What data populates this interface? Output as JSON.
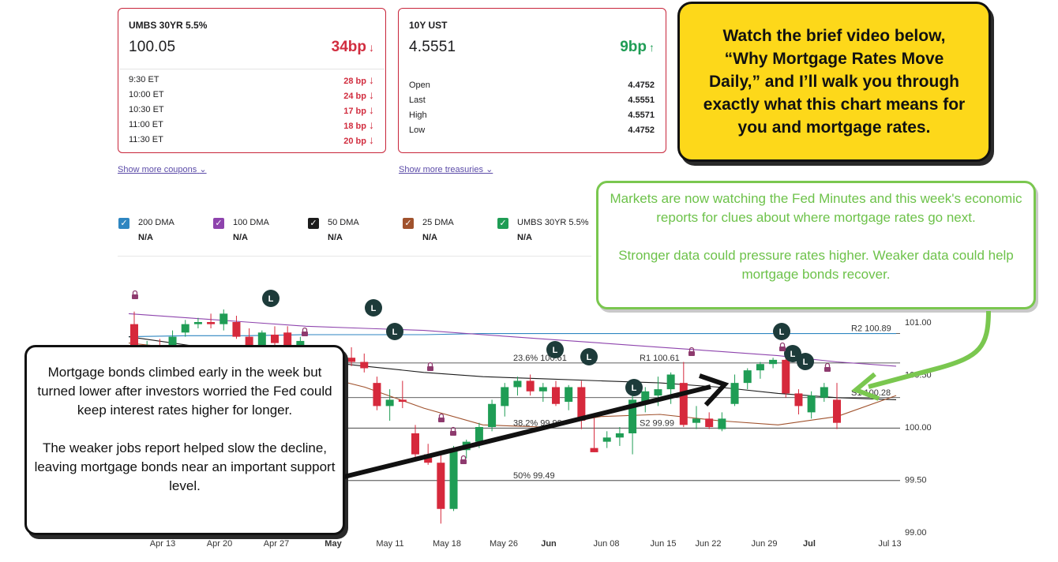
{
  "umbs_card": {
    "title": "UMBS 30YR 5.5%",
    "price": "100.05",
    "change": "34bp",
    "direction": "down",
    "times": [
      {
        "time": "9:30 ET",
        "change": "28 bp"
      },
      {
        "time": "10:00 ET",
        "change": "24 bp"
      },
      {
        "time": "10:30 ET",
        "change": "17 bp"
      },
      {
        "time": "11:00 ET",
        "change": "18 bp"
      },
      {
        "time": "11:30 ET",
        "change": "20 bp"
      }
    ],
    "more_link": "Show more coupons"
  },
  "ust_card": {
    "title": "10Y UST",
    "price": "4.5551",
    "change": "9bp",
    "direction": "up",
    "stats": [
      {
        "label": "Open",
        "value": "4.4752"
      },
      {
        "label": "Last",
        "value": "4.5551"
      },
      {
        "label": "High",
        "value": "4.5571"
      },
      {
        "label": "Low",
        "value": "4.4752"
      }
    ],
    "more_link": "Show more treasuries"
  },
  "callouts": {
    "yellow": "Watch the brief video below, “Why Mortgage Rates Move Daily,” and I’ll walk you through exactly what this chart means for you and mortgage rates.",
    "green_p1": "Markets are now watching the Fed Minutes and this week's economic reports for clues about where mortgage rates go next.",
    "green_p2": "Stronger data could pressure rates higher. Weaker data could help mortgage bonds recover.",
    "black_p1": "Mortgage bonds climbed early in the week but turned lower after investors worried the Fed could keep interest rates higher for longer.",
    "black_p2": "The weaker jobs report helped slow the decline, leaving mortgage bonds near an important support level."
  },
  "legend": [
    {
      "label": "200 DMA",
      "value": "N/A",
      "color": "#2e86c1"
    },
    {
      "label": "100 DMA",
      "value": "N/A",
      "color": "#8e44ad"
    },
    {
      "label": "50 DMA",
      "value": "N/A",
      "color": "#1c1c1c"
    },
    {
      "label": "25 DMA",
      "value": "N/A",
      "color": "#a0522d"
    },
    {
      "label": "UMBS 30YR 5.5%",
      "value": "N/A",
      "color": "#1f9d55"
    }
  ],
  "colors": {
    "up": "#1f9d55",
    "down": "#d6293c",
    "dma200": "#2e86c1",
    "dma100": "#8e44ad",
    "dma50": "#1c1c1c",
    "dma25": "#a0522d",
    "marker_dark": "#1d3b3a",
    "lock": "#8e3a6e"
  },
  "chart_data": {
    "type": "candlestick",
    "y_ticks": [
      "101.00",
      "100.50",
      "100.00",
      "99.50",
      "99.00"
    ],
    "ylim": [
      99.0,
      101.0
    ],
    "x_labels": [
      "Apr 13",
      "Apr 20",
      "Apr 27",
      "May",
      "May 11",
      "May 18",
      "May 26",
      "Jun",
      "Jun 08",
      "Jun 15",
      "Jun 22",
      "Jun 29",
      "Jul",
      "Jul 13"
    ],
    "levels": [
      {
        "label": "R2 100.89",
        "value": 100.89
      },
      {
        "label": "R1 100.61",
        "value": 100.61
      },
      {
        "label": "23.6% 100.61",
        "value": 100.61
      },
      {
        "label": "S1 100.28",
        "value": 100.28
      },
      {
        "label": "S2 99.99",
        "value": 99.99
      },
      {
        "label": "38.2% 99.99",
        "value": 99.99
      },
      {
        "label": "50% 99.49",
        "value": 99.49
      }
    ],
    "candles": [
      {
        "o": 100.98,
        "h": 101.1,
        "l": 100.7,
        "c": 100.74
      },
      {
        "o": 100.74,
        "h": 100.82,
        "l": 100.68,
        "c": 100.77
      },
      {
        "o": 100.78,
        "h": 100.84,
        "l": 100.66,
        "c": 100.74
      },
      {
        "o": 100.74,
        "h": 100.92,
        "l": 100.7,
        "c": 100.86
      },
      {
        "o": 100.9,
        "h": 101.02,
        "l": 100.86,
        "c": 100.98
      },
      {
        "o": 100.98,
        "h": 101.04,
        "l": 100.94,
        "c": 101.0
      },
      {
        "o": 101.0,
        "h": 101.08,
        "l": 100.94,
        "c": 100.98
      },
      {
        "o": 100.98,
        "h": 101.12,
        "l": 100.92,
        "c": 101.08
      },
      {
        "o": 101.0,
        "h": 101.06,
        "l": 100.84,
        "c": 100.86
      },
      {
        "o": 100.86,
        "h": 100.94,
        "l": 100.74,
        "c": 100.78
      },
      {
        "o": 100.78,
        "h": 100.92,
        "l": 100.72,
        "c": 100.9
      },
      {
        "o": 100.88,
        "h": 100.96,
        "l": 100.76,
        "c": 100.8
      },
      {
        "o": 100.9,
        "h": 100.96,
        "l": 100.76,
        "c": 100.78
      },
      {
        "o": 100.78,
        "h": 100.86,
        "l": 100.7,
        "c": 100.82
      },
      {
        "o": 100.46,
        "h": 100.6,
        "l": 100.28,
        "c": 100.32
      },
      {
        "o": 100.32,
        "h": 100.42,
        "l": 100.14,
        "c": 100.28
      },
      {
        "o": 100.4,
        "h": 100.66,
        "l": 100.3,
        "c": 100.64
      },
      {
        "o": 100.66,
        "h": 100.76,
        "l": 100.58,
        "c": 100.62
      },
      {
        "o": 100.62,
        "h": 100.7,
        "l": 100.52,
        "c": 100.56
      },
      {
        "o": 100.42,
        "h": 100.48,
        "l": 100.16,
        "c": 100.2
      },
      {
        "o": 100.2,
        "h": 100.36,
        "l": 100.06,
        "c": 100.26
      },
      {
        "o": 100.26,
        "h": 100.44,
        "l": 100.18,
        "c": 100.24
      },
      {
        "o": 99.94,
        "h": 100.02,
        "l": 99.68,
        "c": 99.74
      },
      {
        "o": 99.74,
        "h": 99.84,
        "l": 99.64,
        "c": 99.66
      },
      {
        "o": 99.66,
        "h": 99.74,
        "l": 99.08,
        "c": 99.22
      },
      {
        "o": 99.22,
        "h": 99.82,
        "l": 99.2,
        "c": 99.78
      },
      {
        "o": 99.78,
        "h": 99.88,
        "l": 99.7,
        "c": 99.86
      },
      {
        "o": 99.86,
        "h": 100.04,
        "l": 99.8,
        "c": 100.0
      },
      {
        "o": 100.0,
        "h": 100.26,
        "l": 99.96,
        "c": 100.22
      },
      {
        "o": 100.2,
        "h": 100.42,
        "l": 100.1,
        "c": 100.38
      },
      {
        "o": 100.38,
        "h": 100.48,
        "l": 100.3,
        "c": 100.44
      },
      {
        "o": 100.44,
        "h": 100.5,
        "l": 100.3,
        "c": 100.34
      },
      {
        "o": 100.34,
        "h": 100.42,
        "l": 100.24,
        "c": 100.38
      },
      {
        "o": 100.38,
        "h": 100.44,
        "l": 100.2,
        "c": 100.22
      },
      {
        "o": 100.24,
        "h": 100.4,
        "l": 100.16,
        "c": 100.38
      },
      {
        "o": 100.38,
        "h": 100.44,
        "l": 99.98,
        "c": 100.06
      },
      {
        "o": 99.8,
        "h": 100.1,
        "l": 99.76,
        "c": 99.76
      },
      {
        "o": 99.86,
        "h": 99.96,
        "l": 99.8,
        "c": 99.9
      },
      {
        "o": 99.9,
        "h": 100.0,
        "l": 99.82,
        "c": 99.94
      },
      {
        "o": 99.94,
        "h": 100.3,
        "l": 99.74,
        "c": 100.26
      },
      {
        "o": 100.24,
        "h": 100.38,
        "l": 100.14,
        "c": 100.34
      },
      {
        "o": 100.3,
        "h": 100.48,
        "l": 100.2,
        "c": 100.36
      },
      {
        "o": 100.36,
        "h": 100.52,
        "l": 100.22,
        "c": 100.5
      },
      {
        "o": 100.42,
        "h": 100.62,
        "l": 100.0,
        "c": 100.02
      },
      {
        "o": 100.04,
        "h": 100.2,
        "l": 99.98,
        "c": 100.08
      },
      {
        "o": 100.08,
        "h": 100.14,
        "l": 99.98,
        "c": 100.0
      },
      {
        "o": 99.98,
        "h": 100.14,
        "l": 99.96,
        "c": 100.08
      },
      {
        "o": 100.22,
        "h": 100.5,
        "l": 100.2,
        "c": 100.42
      },
      {
        "o": 100.42,
        "h": 100.56,
        "l": 100.36,
        "c": 100.54
      },
      {
        "o": 100.54,
        "h": 100.62,
        "l": 100.46,
        "c": 100.6
      },
      {
        "o": 100.6,
        "h": 100.66,
        "l": 100.56,
        "c": 100.64
      },
      {
        "o": 100.64,
        "h": 100.7,
        "l": 100.28,
        "c": 100.32
      },
      {
        "o": 100.32,
        "h": 100.36,
        "l": 100.12,
        "c": 100.2
      },
      {
        "o": 100.14,
        "h": 100.34,
        "l": 100.08,
        "c": 100.3
      },
      {
        "o": 100.28,
        "h": 100.42,
        "l": 100.24,
        "c": 100.38
      },
      {
        "o": 100.26,
        "h": 100.42,
        "l": 99.98,
        "c": 100.04
      }
    ],
    "ma200": [
      100.86,
      100.87,
      100.87,
      100.88,
      100.88,
      100.88,
      100.89,
      100.89,
      100.89,
      100.89,
      100.89,
      100.89,
      100.89,
      100.89
    ],
    "ma100": [
      101.08,
      101.04,
      101.0,
      100.96,
      100.94,
      100.92,
      100.88,
      100.84,
      100.8,
      100.76,
      100.72,
      100.68,
      100.62,
      100.58
    ],
    "ma50": [
      100.86,
      100.78,
      100.72,
      100.64,
      100.58,
      100.52,
      100.48,
      100.46,
      100.44,
      100.42,
      100.38,
      100.32,
      100.28,
      100.26
    ],
    "ma25": [
      100.8,
      100.74,
      100.68,
      100.52,
      100.38,
      100.18,
      100.02,
      100.0,
      100.1,
      100.12,
      100.06,
      100.02,
      100.1,
      100.3
    ]
  }
}
